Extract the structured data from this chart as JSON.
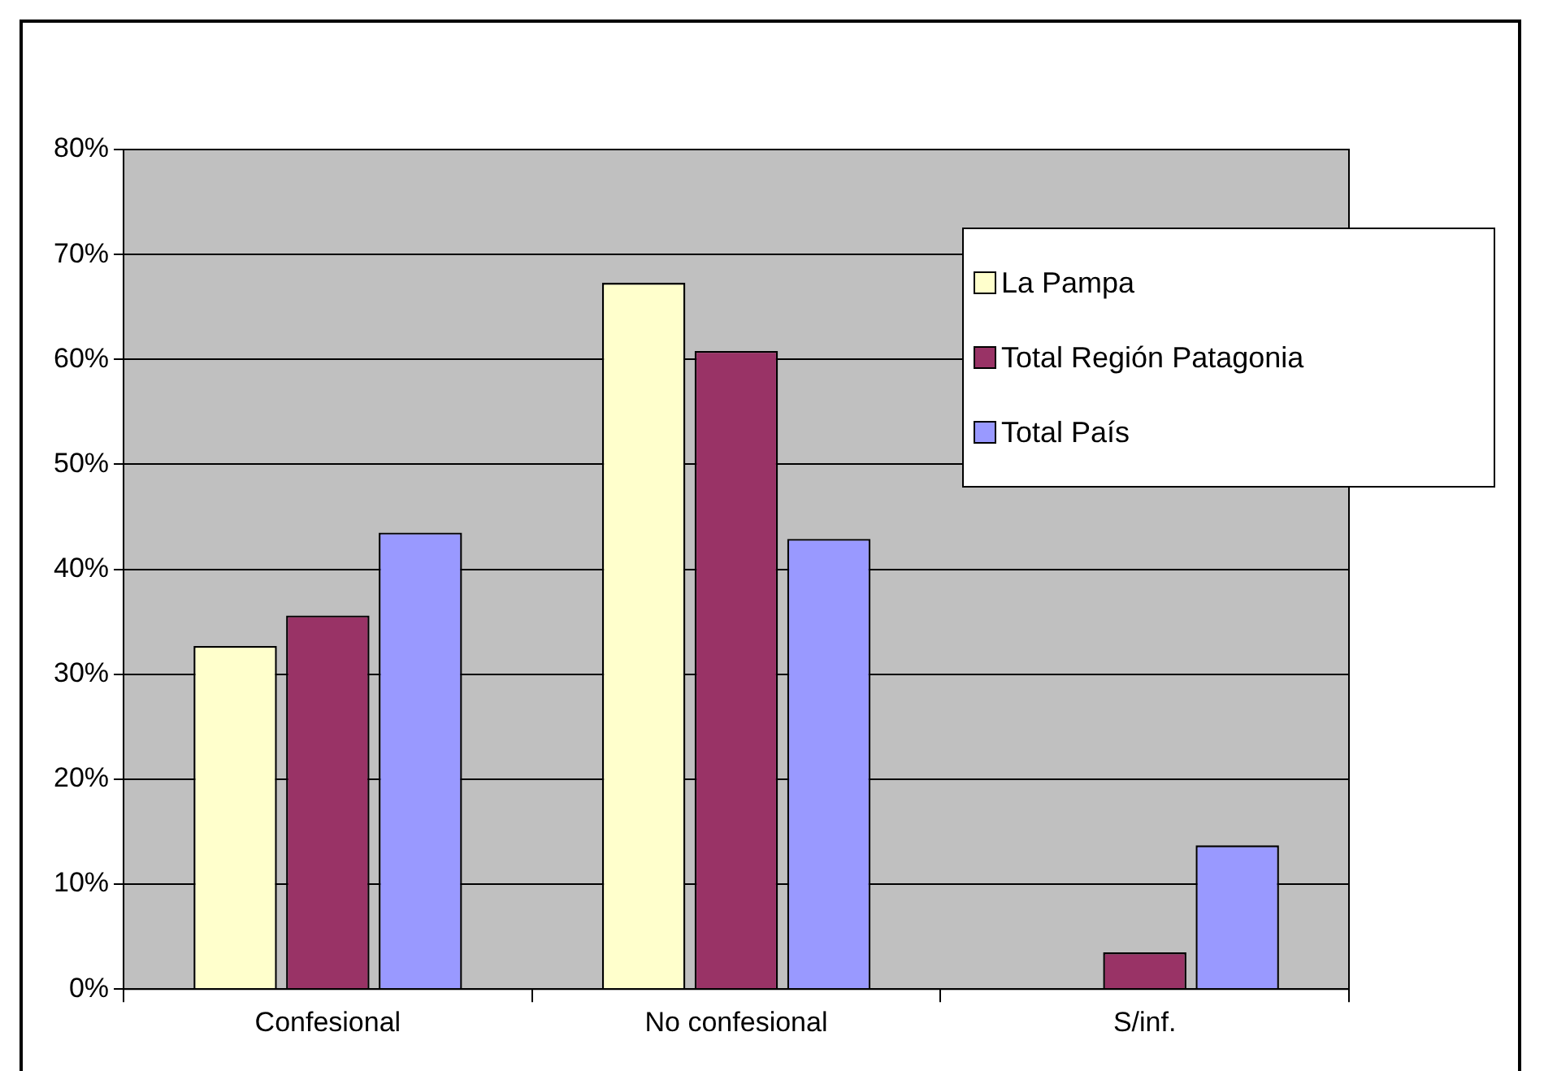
{
  "chart_data": {
    "type": "bar",
    "categories": [
      "Confesional",
      "No confesional",
      "S/inf."
    ],
    "series": [
      {
        "name": "La Pampa",
        "color": "#ffffcc",
        "values": [
          32.7,
          67.3,
          0
        ]
      },
      {
        "name": "Total Región Patagonia",
        "color": "#993366",
        "values": [
          35.6,
          60.8,
          3.5
        ]
      },
      {
        "name": "Total País",
        "color": "#9999ff",
        "values": [
          43.5,
          42.9,
          13.7
        ]
      }
    ],
    "ylim": [
      0,
      80
    ],
    "yticks": [
      {
        "value": 0,
        "label": "0%"
      },
      {
        "value": 10,
        "label": "10%"
      },
      {
        "value": 20,
        "label": "20%"
      },
      {
        "value": 30,
        "label": "30%"
      },
      {
        "value": 40,
        "label": "40%"
      },
      {
        "value": 50,
        "label": "50%"
      },
      {
        "value": 60,
        "label": "60%"
      },
      {
        "value": 70,
        "label": "70%"
      },
      {
        "value": 80,
        "label": "80%"
      }
    ],
    "grid": "y",
    "legend": "top right"
  }
}
